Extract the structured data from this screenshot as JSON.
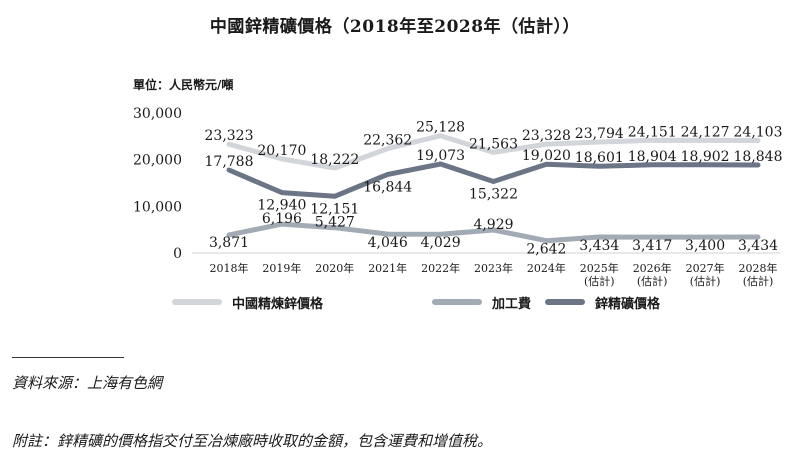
{
  "chart_data": {
    "type": "line",
    "title": "中國鋅精礦價格（2018年至2028年（估計））",
    "ylabel": "單位：人民幣元/噸",
    "ylim": [
      0,
      30000
    ],
    "yticks": [
      "30,000",
      "20,000",
      "10,000",
      "0"
    ],
    "ytick_values": [
      30000,
      20000,
      10000,
      0
    ],
    "categories": [
      [
        "2018年"
      ],
      [
        "2019年"
      ],
      [
        "2020年"
      ],
      [
        "2021年"
      ],
      [
        "2022年"
      ],
      [
        "2023年"
      ],
      [
        "2024年"
      ],
      [
        "2025年",
        "(估計)"
      ],
      [
        "2026年",
        "(估計)"
      ],
      [
        "2027年",
        "(估計)"
      ],
      [
        "2028年",
        "(估計)"
      ]
    ],
    "grid": false,
    "legend_position": "bottom",
    "series": [
      {
        "name": "中國精煉鋅價格",
        "color": "#d2d5d9",
        "values": [
          23323,
          20170,
          18222,
          22362,
          25128,
          21563,
          23328,
          23794,
          24151,
          24127,
          24103
        ],
        "labels": [
          "23,323",
          "20,170",
          "18,222",
          "22,362",
          "25,128",
          "21,563",
          "23,328",
          "23,794",
          "24,151",
          "24,127",
          "24,103"
        ]
      },
      {
        "name": "加工費",
        "color": "#a2aab4",
        "values": [
          3871,
          6196,
          5427,
          4046,
          4029,
          4929,
          2642,
          3434,
          3417,
          3400,
          3434
        ],
        "labels": [
          "3,871",
          "6,196",
          "5,427",
          "4,046",
          "4,029",
          "4,929",
          "2,642",
          "3,434",
          "3,417",
          "3,400",
          "3,434"
        ]
      },
      {
        "name": "鋅精礦價格",
        "color": "#6b7585",
        "values": [
          17788,
          12940,
          12151,
          16844,
          19073,
          15322,
          19020,
          18601,
          18904,
          18902,
          18848
        ],
        "labels": [
          "17,788",
          "12,940",
          "12,151",
          "16,844",
          "19,073",
          "15,322",
          "19,020",
          "18,601",
          "18,904",
          "18,902",
          "18,848"
        ]
      }
    ]
  },
  "notes": {
    "source": "資料來源：上海有色網",
    "remark": "附註：鋅精礦的價格指交付至冶煉廠時收取的金額，包含運費和增值稅。"
  }
}
